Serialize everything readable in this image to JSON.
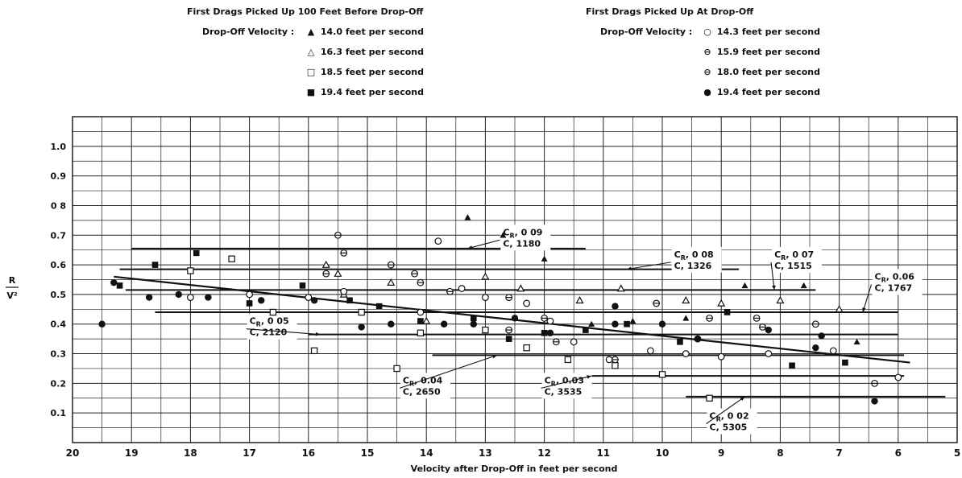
{
  "legend": {
    "left": {
      "title": "First Drags Picked Up 100 Feet Before Drop-Off",
      "label": "Drop-Off Velocity :",
      "entries": [
        {
          "symbol": "filled-triangle",
          "text": "14.0  feet per second"
        },
        {
          "symbol": "open-triangle",
          "text": "16.3  feet per second"
        },
        {
          "symbol": "open-square",
          "text": "18.5  feet per second"
        },
        {
          "symbol": "filled-square",
          "text": "19.4  feet per second"
        }
      ]
    },
    "right": {
      "title": "First Drags Picked Up At Drop-Off",
      "label": "Drop-Off Velocity :",
      "entries": [
        {
          "symbol": "open-circle",
          "text": "14.3  feet per second"
        },
        {
          "symbol": "circle-minus",
          "text": "15.9  feet per second"
        },
        {
          "symbol": "circle-minus",
          "text": "18.0  feet per second"
        },
        {
          "symbol": "filled-circle",
          "text": "19.4  feet per second"
        }
      ]
    }
  },
  "chart_data": {
    "type": "scatter",
    "xlabel": "Velocity after Drop-Off in feet per second",
    "ylabel_num": "R",
    "ylabel_den": "V²",
    "xlim": [
      20,
      5
    ],
    "ylim": [
      0,
      1.1
    ],
    "x_ticks": [
      "20",
      "19",
      "18",
      "17",
      "16",
      "15",
      "14",
      "13",
      "12",
      "11",
      "10",
      "9",
      "8",
      "7",
      "6",
      "5"
    ],
    "y_ticks": [
      {
        "v": 0.1,
        "t": "0.1"
      },
      {
        "v": 0.2,
        "t": "0.2"
      },
      {
        "v": 0.3,
        "t": "0.3"
      },
      {
        "v": 0.4,
        "t": "0.4"
      },
      {
        "v": 0.5,
        "t": "0.5"
      },
      {
        "v": 0.6,
        "t": "0.6"
      },
      {
        "v": 0.7,
        "t": "0.7"
      },
      {
        "v": 0.8,
        "t": "0 8"
      },
      {
        "v": 0.9,
        "t": "0.9"
      },
      {
        "v": 1.0,
        "t": "1.0"
      }
    ],
    "trend_line": {
      "x": [
        19.3,
        5.8
      ],
      "y": [
        0.56,
        0.27
      ]
    },
    "reference_lines": [
      {
        "y": 0.655,
        "x": [
          19.0,
          11.3
        ],
        "cr": "0 09",
        "c": "1180",
        "lx": 12.7,
        "ly": 0.7,
        "ax": 13.3,
        "ay": 0.655
      },
      {
        "y": 0.585,
        "x": [
          19.2,
          8.7
        ],
        "cr": "0 08",
        "c": "1326",
        "lx": 9.8,
        "ly": 0.625,
        "ax": 10.6,
        "ay": 0.585
      },
      {
        "y": 0.515,
        "x": [
          19.1,
          7.4
        ],
        "cr": "0 07",
        "c": "1515",
        "lx": 8.1,
        "ly": 0.625,
        "ax": 8.1,
        "ay": 0.515
      },
      {
        "y": 0.44,
        "x": [
          18.6,
          6.0
        ],
        "cr": "0.06",
        "c": "1767",
        "lx": 6.4,
        "ly": 0.55,
        "ax": 6.6,
        "ay": 0.44
      },
      {
        "y": 0.365,
        "x": [
          16.0,
          6.0
        ],
        "cr": "0 05",
        "c": "2120",
        "lx": 17.0,
        "ly": 0.4,
        "ax": 15.8,
        "ay": 0.365
      },
      {
        "y": 0.295,
        "x": [
          13.9,
          5.9
        ],
        "cr": "0.04",
        "c": "2650",
        "lx": 14.4,
        "ly": 0.2,
        "ax": 12.8,
        "ay": 0.295
      },
      {
        "y": 0.225,
        "x": [
          11.4,
          5.9
        ],
        "cr": "0.03",
        "c": "3535",
        "lx": 12.0,
        "ly": 0.2,
        "ax": 11.2,
        "ay": 0.225
      },
      {
        "y": 0.155,
        "x": [
          9.6,
          5.2
        ],
        "cr": "0 02",
        "c": "5305",
        "lx": 9.2,
        "ly": 0.08,
        "ax": 8.6,
        "ay": 0.155
      }
    ],
    "series": [
      {
        "symbol": "filled-triangle",
        "points": [
          [
            13.3,
            0.76
          ],
          [
            12.7,
            0.7
          ],
          [
            12.0,
            0.62
          ],
          [
            11.2,
            0.4
          ],
          [
            10.5,
            0.41
          ],
          [
            9.6,
            0.42
          ],
          [
            8.6,
            0.53
          ],
          [
            7.6,
            0.53
          ],
          [
            6.7,
            0.34
          ]
        ]
      },
      {
        "symbol": "open-triangle",
        "points": [
          [
            15.7,
            0.6
          ],
          [
            15.5,
            0.57
          ],
          [
            15.4,
            0.5
          ],
          [
            14.6,
            0.54
          ],
          [
            14.0,
            0.41
          ],
          [
            13.0,
            0.56
          ],
          [
            12.4,
            0.52
          ],
          [
            11.4,
            0.48
          ],
          [
            10.7,
            0.52
          ],
          [
            9.6,
            0.48
          ],
          [
            9.0,
            0.47
          ],
          [
            8.0,
            0.48
          ],
          [
            7.0,
            0.45
          ]
        ]
      },
      {
        "symbol": "open-square",
        "points": [
          [
            18.0,
            0.58
          ],
          [
            17.3,
            0.62
          ],
          [
            16.6,
            0.44
          ],
          [
            15.9,
            0.31
          ],
          [
            15.1,
            0.44
          ],
          [
            14.5,
            0.25
          ],
          [
            14.1,
            0.37
          ],
          [
            13.0,
            0.38
          ],
          [
            12.3,
            0.32
          ],
          [
            11.6,
            0.28
          ],
          [
            10.8,
            0.26
          ],
          [
            10.0,
            0.23
          ],
          [
            9.2,
            0.15
          ]
        ]
      },
      {
        "symbol": "filled-square",
        "points": [
          [
            19.2,
            0.53
          ],
          [
            18.6,
            0.6
          ],
          [
            17.9,
            0.64
          ],
          [
            17.0,
            0.47
          ],
          [
            16.1,
            0.53
          ],
          [
            15.3,
            0.48
          ],
          [
            14.8,
            0.46
          ],
          [
            14.1,
            0.41
          ],
          [
            13.2,
            0.42
          ],
          [
            12.6,
            0.35
          ],
          [
            12.0,
            0.37
          ],
          [
            11.3,
            0.38
          ],
          [
            10.6,
            0.4
          ],
          [
            9.7,
            0.34
          ],
          [
            8.9,
            0.44
          ],
          [
            7.8,
            0.26
          ],
          [
            6.9,
            0.27
          ]
        ]
      },
      {
        "symbol": "open-circle",
        "points": [
          [
            18.0,
            0.49
          ],
          [
            17.0,
            0.5
          ],
          [
            16.0,
            0.49
          ],
          [
            15.4,
            0.51
          ],
          [
            14.1,
            0.44
          ],
          [
            13.8,
            0.68
          ],
          [
            13.4,
            0.52
          ],
          [
            13.0,
            0.49
          ],
          [
            12.3,
            0.47
          ],
          [
            11.9,
            0.41
          ],
          [
            11.5,
            0.34
          ],
          [
            10.9,
            0.28
          ],
          [
            10.2,
            0.31
          ],
          [
            9.6,
            0.3
          ],
          [
            9.0,
            0.29
          ],
          [
            8.2,
            0.3
          ],
          [
            7.1,
            0.31
          ],
          [
            6.0,
            0.22
          ]
        ]
      },
      {
        "symbol": "circle-minus",
        "points": [
          [
            15.7,
            0.57
          ],
          [
            15.5,
            0.7
          ],
          [
            15.4,
            0.64
          ],
          [
            14.6,
            0.6
          ],
          [
            14.2,
            0.57
          ],
          [
            14.1,
            0.54
          ],
          [
            13.6,
            0.51
          ],
          [
            12.6,
            0.49
          ],
          [
            12.6,
            0.38
          ],
          [
            12.0,
            0.42
          ],
          [
            11.8,
            0.34
          ],
          [
            10.8,
            0.28
          ],
          [
            10.1,
            0.47
          ],
          [
            9.4,
            0.35
          ],
          [
            9.2,
            0.42
          ],
          [
            8.4,
            0.42
          ],
          [
            8.3,
            0.39
          ],
          [
            7.4,
            0.4
          ],
          [
            6.4,
            0.2
          ]
        ]
      },
      {
        "symbol": "filled-circle",
        "points": [
          [
            19.5,
            0.4
          ],
          [
            19.3,
            0.54
          ],
          [
            18.7,
            0.49
          ],
          [
            18.2,
            0.5
          ],
          [
            17.7,
            0.49
          ],
          [
            16.8,
            0.48
          ],
          [
            15.9,
            0.48
          ],
          [
            15.1,
            0.39
          ],
          [
            14.6,
            0.4
          ],
          [
            13.7,
            0.4
          ],
          [
            13.2,
            0.4
          ],
          [
            12.5,
            0.42
          ],
          [
            11.9,
            0.37
          ],
          [
            10.8,
            0.4
          ],
          [
            10.8,
            0.46
          ],
          [
            10.0,
            0.4
          ],
          [
            9.4,
            0.35
          ],
          [
            8.2,
            0.38
          ],
          [
            7.4,
            0.32
          ],
          [
            7.3,
            0.36
          ],
          [
            6.4,
            0.14
          ]
        ]
      }
    ]
  }
}
